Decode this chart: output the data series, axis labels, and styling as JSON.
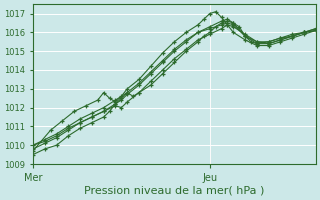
{
  "xlabel": "Pression niveau de la mer( hPa )",
  "bg_color": "#cce8e8",
  "grid_color": "#ffffff",
  "line_color": "#2d6b2d",
  "ylim": [
    1009,
    1017.5
  ],
  "yticks": [
    1009,
    1010,
    1011,
    1012,
    1013,
    1014,
    1015,
    1016,
    1017
  ],
  "xlim": [
    0,
    48
  ],
  "x_mer": 0,
  "x_jeu": 30,
  "vline_color": "#666666",
  "series": [
    [
      0,
      1009.5,
      2,
      1009.8,
      4,
      1010.0,
      6,
      1010.5,
      8,
      1010.9,
      10,
      1011.2,
      12,
      1011.5,
      13,
      1011.8,
      14,
      1012.2,
      15,
      1012.5,
      16,
      1012.8,
      17,
      1012.6,
      18,
      1012.8,
      20,
      1013.2,
      22,
      1013.8,
      24,
      1014.4,
      26,
      1015.0,
      28,
      1015.5,
      29,
      1015.8,
      30,
      1016.0,
      31,
      1016.3,
      32,
      1016.5,
      33,
      1016.6,
      34,
      1016.5,
      35,
      1016.3,
      36,
      1015.8,
      37,
      1015.5,
      38,
      1015.4,
      40,
      1015.4,
      42,
      1015.6,
      44,
      1015.8,
      46,
      1016.0,
      48,
      1016.2
    ],
    [
      0,
      1010.0,
      2,
      1010.2,
      4,
      1010.5,
      6,
      1010.9,
      8,
      1011.2,
      10,
      1011.5,
      12,
      1011.8,
      14,
      1012.1,
      15,
      1012.0,
      16,
      1012.3,
      18,
      1012.8,
      20,
      1013.4,
      22,
      1014.0,
      24,
      1014.6,
      26,
      1015.1,
      28,
      1015.6,
      30,
      1015.9,
      32,
      1016.2,
      33,
      1016.4,
      34,
      1016.3,
      36,
      1015.9,
      38,
      1015.5,
      40,
      1015.4,
      42,
      1015.6,
      44,
      1015.8,
      46,
      1016.0,
      48,
      1016.1
    ],
    [
      0,
      1009.7,
      3,
      1010.8,
      5,
      1011.3,
      7,
      1011.8,
      9,
      1012.1,
      11,
      1012.4,
      12,
      1012.8,
      13,
      1012.5,
      14,
      1012.3,
      15,
      1012.6,
      16,
      1013.0,
      18,
      1013.5,
      20,
      1014.2,
      22,
      1014.9,
      24,
      1015.5,
      26,
      1016.0,
      28,
      1016.4,
      29,
      1016.7,
      30,
      1017.0,
      31,
      1017.1,
      32,
      1016.8,
      33,
      1016.4,
      34,
      1016.0,
      36,
      1015.6,
      38,
      1015.3,
      40,
      1015.3,
      42,
      1015.5,
      44,
      1015.7,
      46,
      1015.9,
      48,
      1016.1
    ],
    [
      0,
      1009.8,
      2,
      1010.1,
      4,
      1010.4,
      6,
      1010.8,
      8,
      1011.2,
      10,
      1011.5,
      12,
      1011.8,
      14,
      1012.2,
      15,
      1012.4,
      16,
      1012.7,
      18,
      1013.2,
      20,
      1013.8,
      22,
      1014.4,
      24,
      1015.0,
      26,
      1015.5,
      28,
      1016.0,
      30,
      1016.3,
      32,
      1016.6,
      33,
      1016.7,
      34,
      1016.5,
      36,
      1015.8,
      38,
      1015.4,
      40,
      1015.5,
      42,
      1015.7,
      44,
      1015.9,
      46,
      1016.0,
      48,
      1016.1
    ],
    [
      0,
      1010.0,
      2,
      1010.3,
      4,
      1010.6,
      6,
      1011.0,
      8,
      1011.4,
      10,
      1011.7,
      12,
      1012.0,
      14,
      1012.4,
      16,
      1012.8,
      18,
      1013.3,
      20,
      1013.9,
      22,
      1014.5,
      24,
      1015.1,
      26,
      1015.6,
      28,
      1016.0,
      30,
      1016.2,
      32,
      1016.4,
      33,
      1016.5,
      34,
      1016.4,
      36,
      1015.8,
      38,
      1015.5,
      40,
      1015.5,
      42,
      1015.7,
      44,
      1015.8,
      46,
      1016.0,
      48,
      1016.2
    ]
  ]
}
